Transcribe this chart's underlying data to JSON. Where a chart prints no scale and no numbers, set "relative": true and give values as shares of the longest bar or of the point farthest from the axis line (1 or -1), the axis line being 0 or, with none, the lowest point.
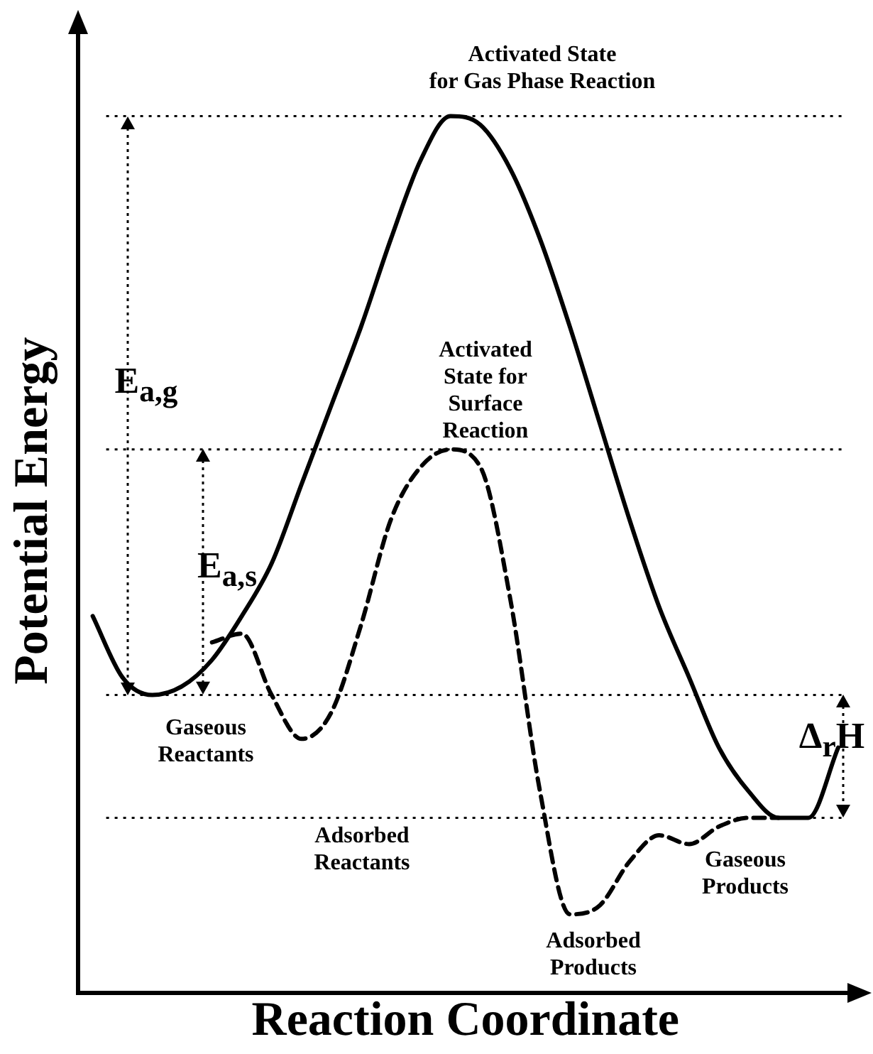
{
  "chart_data": {
    "type": "line",
    "relative": true,
    "xlabel": "Reaction Coordinate",
    "ylabel": "Potential Energy",
    "categories": [
      null,
      null,
      null,
      null,
      null,
      null,
      null,
      null,
      null,
      null,
      null,
      null,
      null,
      null,
      null,
      null,
      null,
      null,
      null,
      null,
      null,
      null,
      null,
      null,
      null,
      null
    ],
    "series": [
      {
        "color": "#000000",
        "line_style": "solid",
        "values": [
          0.43,
          0.36,
          0.34,
          0.35,
          0.38,
          0.43,
          0.49,
          0.58,
          0.67,
          0.76,
          0.86,
          0.95,
          1.0,
          0.99,
          0.94,
          0.86,
          0.76,
          0.65,
          0.54,
          0.44,
          0.36,
          0.28,
          0.23,
          0.2,
          0.2,
          0.28
        ]
      },
      {
        "color": "#000000",
        "line_style": "dashed",
        "values": [
          null,
          null,
          null,
          null,
          0.4,
          0.41,
          0.34,
          0.29,
          0.32,
          0.42,
          0.54,
          0.6,
          0.62,
          0.6,
          0.45,
          0.23,
          0.09,
          0.1,
          0.15,
          0.18,
          0.17,
          0.19,
          0.2,
          0.2,
          null,
          null
        ]
      }
    ],
    "ref_lines": [
      {
        "axis": "y",
        "value": 1.0,
        "line_style": "dotted",
        "color": "#000000"
      },
      {
        "axis": "y",
        "value": 0.62,
        "line_style": "dotted",
        "color": "#000000"
      },
      {
        "axis": "y",
        "value": 0.34,
        "line_style": "dotted",
        "color": "#000000"
      },
      {
        "axis": "y",
        "value": 0.2,
        "line_style": "dotted",
        "color": "#000000"
      }
    ],
    "annotations": [
      "Activated State\nfor Gas Phase Reaction",
      "Activated\nState for\nSurface\nReaction",
      "Gaseous\nReactants",
      "Adsorbed\nReactants",
      "Adsorbed\nProducts",
      "Gaseous\nProducts",
      "E$_{a,g}$",
      "E$_{a,s}$",
      "Δ$_{r}$H"
    ],
    "legend": false,
    "grid": false,
    "marker": "none"
  }
}
